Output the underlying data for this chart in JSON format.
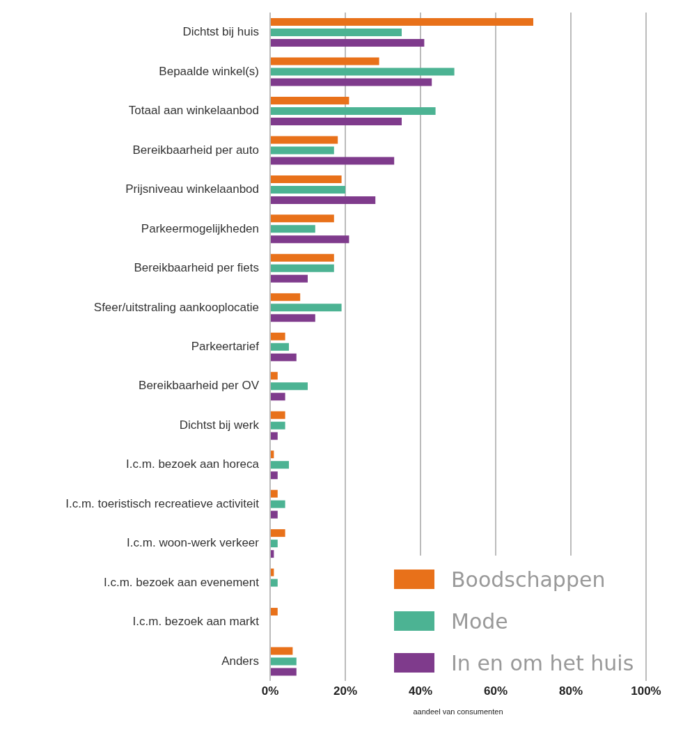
{
  "chart_data": {
    "type": "bar",
    "orientation": "horizontal",
    "xlabel": "aandeel van consumenten",
    "categories": [
      "Dichtst bij huis",
      "Bepaalde winkel(s)",
      "Totaal aan winkelaanbod",
      "Bereikbaarheid per auto",
      "Prijsniveau winkelaanbod",
      "Parkeermogelijkheden",
      "Bereikbaarheid per fiets",
      "Sfeer/uitstraling aankooplocatie",
      "Parkeertarief",
      "Bereikbaarheid per OV",
      "Dichtst bij werk",
      "I.c.m. bezoek aan horeca",
      "I.c.m. toeristisch recreatieve activiteit",
      "I.c.m. woon-werk verkeer",
      "I.c.m. bezoek aan evenement",
      "I.c.m. bezoek aan markt",
      "Anders"
    ],
    "series": [
      {
        "name": "Boodschappen",
        "color": "#e8711a",
        "values": [
          70,
          29,
          21,
          18,
          19,
          17,
          17,
          8,
          4,
          2,
          4,
          1,
          2,
          4,
          1,
          2,
          6
        ]
      },
      {
        "name": "Mode",
        "color": "#4cb393",
        "values": [
          35,
          49,
          44,
          17,
          20,
          12,
          17,
          19,
          5,
          10,
          4,
          5,
          4,
          2,
          2,
          0,
          7
        ]
      },
      {
        "name": "In en om het huis",
        "color": "#7f3b8c",
        "values": [
          41,
          43,
          35,
          33,
          28,
          21,
          10,
          12,
          7,
          4,
          2,
          2,
          2,
          1,
          0,
          0,
          7
        ]
      }
    ],
    "xlim": [
      0,
      100
    ],
    "xticks": [
      {
        "value": 0,
        "label": "0%"
      },
      {
        "value": 20,
        "label": "20%"
      },
      {
        "value": 40,
        "label": "40%"
      },
      {
        "value": 60,
        "label": "60%"
      },
      {
        "value": 80,
        "label": "80%"
      },
      {
        "value": 100,
        "label": "100%"
      }
    ],
    "grid": "x",
    "legend": "bottom right"
  }
}
